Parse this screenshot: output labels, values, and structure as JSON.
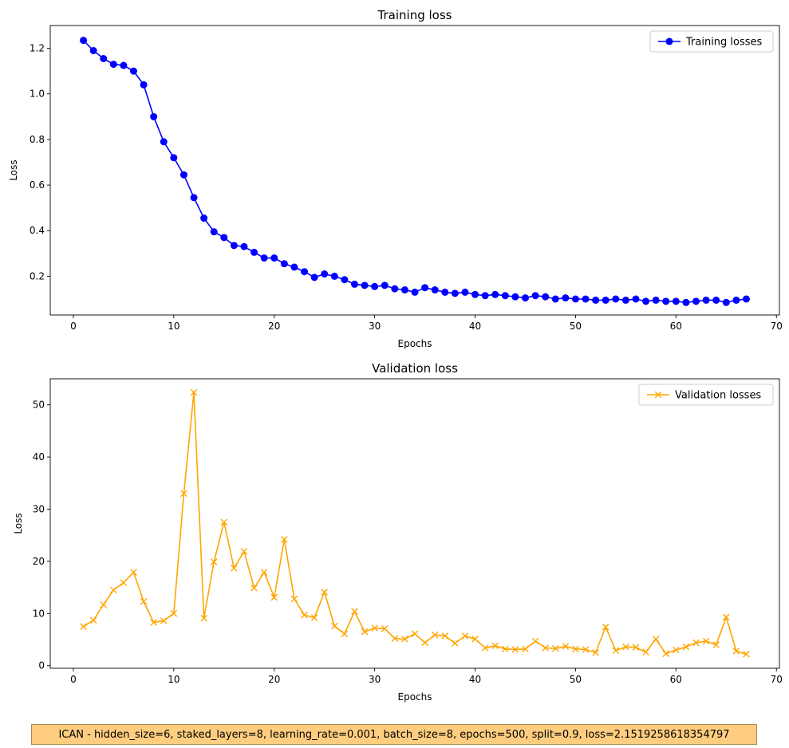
{
  "colors": {
    "training": "#0000ff",
    "validation": "#ffa500"
  },
  "caption": "ICAN - hidden_size=6, staked_layers=8, learning_rate=0.001, batch_size=8, epochs=500, split=0.9, loss=2.1519258618354797",
  "chart_data": [
    {
      "type": "line",
      "title": "Training loss",
      "xlabel": "Epochs",
      "ylabel": "Loss",
      "xlim": [
        -2.3,
        70.3
      ],
      "ylim": [
        0.03,
        1.3
      ],
      "xticks": [
        0,
        10,
        20,
        30,
        40,
        50,
        60,
        70
      ],
      "yticks": [
        0.2,
        0.4,
        0.6,
        0.8,
        1.0,
        1.2
      ],
      "yticks_labels": [
        "0.2",
        "0.4",
        "0.6",
        "0.8",
        "1.0",
        "1.2"
      ],
      "legend_position": "top-right",
      "grid": false,
      "marker": "circle",
      "series": [
        {
          "name": "Training losses",
          "x": [
            1,
            2,
            3,
            4,
            5,
            6,
            7,
            8,
            9,
            10,
            11,
            12,
            13,
            14,
            15,
            16,
            17,
            18,
            19,
            20,
            21,
            22,
            23,
            24,
            25,
            26,
            27,
            28,
            29,
            30,
            31,
            32,
            33,
            34,
            35,
            36,
            37,
            38,
            39,
            40,
            41,
            42,
            43,
            44,
            45,
            46,
            47,
            48,
            49,
            50,
            51,
            52,
            53,
            54,
            55,
            56,
            57,
            58,
            59,
            60,
            61,
            62,
            63,
            64,
            65,
            66,
            67
          ],
          "values": [
            1.235,
            1.19,
            1.155,
            1.13,
            1.125,
            1.1,
            1.04,
            0.9,
            0.79,
            0.72,
            0.645,
            0.545,
            0.455,
            0.395,
            0.37,
            0.335,
            0.33,
            0.305,
            0.28,
            0.28,
            0.255,
            0.24,
            0.22,
            0.195,
            0.21,
            0.2,
            0.185,
            0.165,
            0.16,
            0.155,
            0.16,
            0.145,
            0.14,
            0.13,
            0.15,
            0.14,
            0.13,
            0.125,
            0.13,
            0.12,
            0.115,
            0.12,
            0.115,
            0.11,
            0.105,
            0.115,
            0.11,
            0.1,
            0.105,
            0.1,
            0.1,
            0.095,
            0.095,
            0.1,
            0.095,
            0.1,
            0.09,
            0.095,
            0.09,
            0.09,
            0.085,
            0.09,
            0.095,
            0.095,
            0.085,
            0.095,
            0.1
          ]
        }
      ]
    },
    {
      "type": "line",
      "title": "Validation loss",
      "xlabel": "Epochs",
      "ylabel": "Loss",
      "xlim": [
        -2.3,
        70.3
      ],
      "ylim": [
        -0.5,
        55
      ],
      "xticks": [
        0,
        10,
        20,
        30,
        40,
        50,
        60,
        70
      ],
      "yticks": [
        0,
        10,
        20,
        30,
        40,
        50
      ],
      "yticks_labels": [
        "0",
        "10",
        "20",
        "30",
        "40",
        "50"
      ],
      "legend_position": "top-right",
      "grid": false,
      "marker": "x",
      "series": [
        {
          "name": "Validation losses",
          "x": [
            1,
            2,
            3,
            4,
            5,
            6,
            7,
            8,
            9,
            10,
            11,
            12,
            13,
            14,
            15,
            16,
            17,
            18,
            19,
            20,
            21,
            22,
            23,
            24,
            25,
            26,
            27,
            28,
            29,
            30,
            31,
            32,
            33,
            34,
            35,
            36,
            37,
            38,
            39,
            40,
            41,
            42,
            43,
            44,
            45,
            46,
            47,
            48,
            49,
            50,
            51,
            52,
            53,
            54,
            55,
            56,
            57,
            58,
            59,
            60,
            61,
            62,
            63,
            64,
            65,
            66,
            67
          ],
          "values": [
            7.5,
            8.7,
            11.7,
            14.5,
            15.9,
            17.9,
            12.3,
            8.3,
            8.6,
            10,
            33,
            52.4,
            9.1,
            19.9,
            27.5,
            18.7,
            21.9,
            14.9,
            17.9,
            13.1,
            24.2,
            12.8,
            9.7,
            9.2,
            14.1,
            7.6,
            6.1,
            10.4,
            6.5,
            7.2,
            7.1,
            5.2,
            5.1,
            6.1,
            4.4,
            5.9,
            5.7,
            4.3,
            5.7,
            5.1,
            3.4,
            3.8,
            3.2,
            3.1,
            3.2,
            4.7,
            3.4,
            3.3,
            3.7,
            3.2,
            3.1,
            2.5,
            7.4,
            2.9,
            3.6,
            3.5,
            2.6,
            5.1,
            2.3,
            3,
            3.6,
            4.4,
            4.7,
            4,
            9.3,
            2.8,
            2.2
          ]
        }
      ]
    }
  ]
}
